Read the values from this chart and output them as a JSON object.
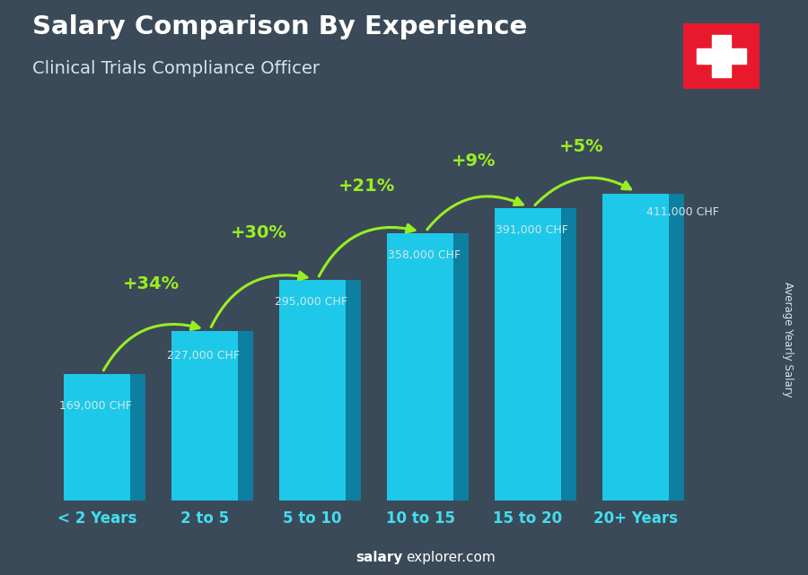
{
  "title": "Salary Comparison By Experience",
  "subtitle": "Clinical Trials Compliance Officer",
  "categories": [
    "< 2 Years",
    "2 to 5",
    "5 to 10",
    "10 to 15",
    "15 to 20",
    "20+ Years"
  ],
  "values": [
    169000,
    227000,
    295000,
    358000,
    391000,
    411000
  ],
  "salary_labels": [
    "169,000 CHF",
    "227,000 CHF",
    "295,000 CHF",
    "358,000 CHF",
    "391,000 CHF",
    "411,000 CHF"
  ],
  "pct_labels": [
    "+34%",
    "+30%",
    "+21%",
    "+9%",
    "+5%"
  ],
  "bar_color_front": "#1ec8e8",
  "bar_color_side": "#0d7fa0",
  "bar_color_top": "#5ae0f5",
  "bg_color": "#3a4a58",
  "title_color": "#ffffff",
  "subtitle_color": "#d0e8f0",
  "salary_label_color": "#d0e8f0",
  "pct_color": "#99ee22",
  "xlabel_color": "#44ddee",
  "ylabel_text": "Average Yearly Salary",
  "watermark_bold": "salary",
  "watermark_normal": "explorer.com",
  "flag_red": "#e8192c",
  "flag_white": "#ffffff",
  "arrow_color": "#99ee22"
}
